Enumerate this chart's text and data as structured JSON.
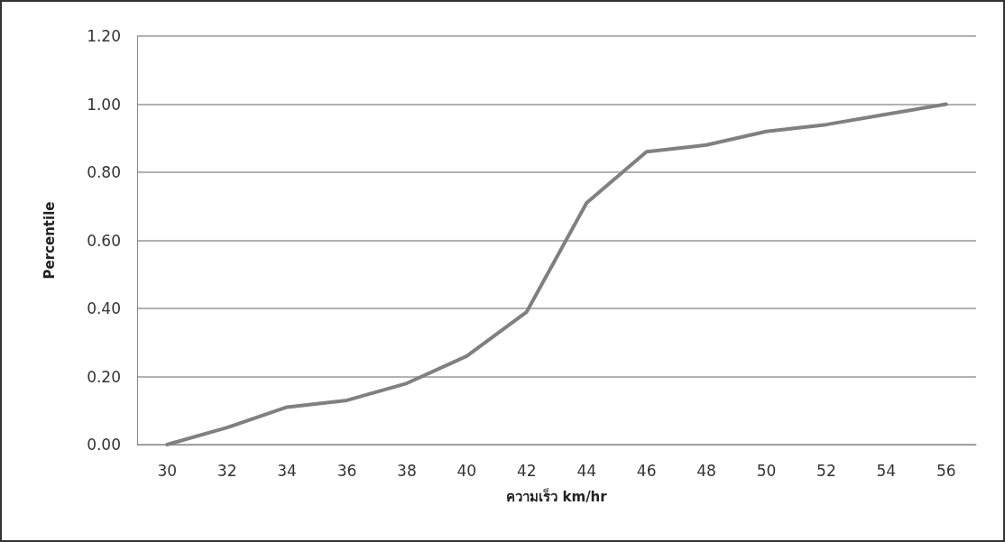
{
  "chart_data": {
    "type": "line",
    "xlabel": "ความเร็ว km/hr",
    "ylabel": "Percentile",
    "categories": [
      "30",
      "32",
      "34",
      "36",
      "38",
      "40",
      "42",
      "44",
      "46",
      "48",
      "50",
      "52",
      "54",
      "56"
    ],
    "series": [
      {
        "color": "#808080",
        "values": [
          0,
          0.05,
          0.11,
          0.13,
          0.18,
          0.26,
          0.39,
          0.71,
          0.86,
          0.88,
          0.92,
          0.94,
          0.97,
          1.0
        ]
      }
    ],
    "ylim": [
      0,
      1.2
    ],
    "yticks": [
      {
        "value": 0,
        "label": "0.00"
      },
      {
        "value": 0.2,
        "label": "0.20"
      },
      {
        "value": 0.4,
        "label": "0.40"
      },
      {
        "value": 0.6,
        "label": "0.60"
      },
      {
        "value": 0.8,
        "label": "0.80"
      },
      {
        "value": 1,
        "label": "1.00"
      },
      {
        "value": 1.2,
        "label": "1.20"
      }
    ],
    "grid": "y",
    "marker": "none",
    "line_style": "solid"
  }
}
